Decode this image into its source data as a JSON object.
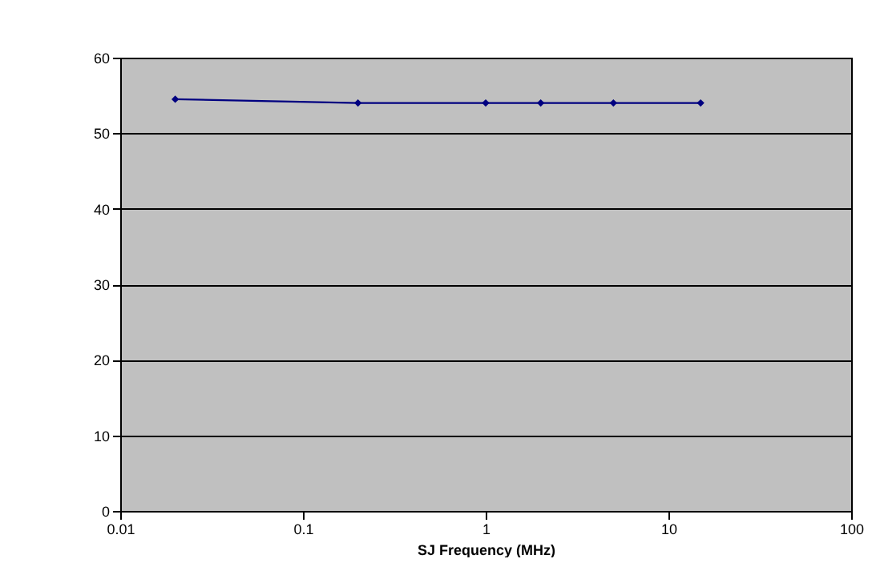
{
  "chart_data": {
    "type": "line",
    "xlabel": "SJ Frequency (MHz)",
    "x": [
      0.02,
      0.2,
      1,
      2,
      5,
      15
    ],
    "series": [
      {
        "color": "#000080",
        "values": [
          54.5,
          54,
          54,
          54,
          54,
          54
        ]
      }
    ],
    "log": "x",
    "xlim": [
      0.01,
      100
    ],
    "xticks": [
      0.01,
      0.1,
      1,
      10,
      100
    ],
    "ylim": [
      0,
      60
    ],
    "yticks": [
      0,
      10,
      20,
      30,
      40,
      50,
      60
    ],
    "grid": "y",
    "marker": "diamond",
    "line_style": "solid",
    "legend": false
  }
}
